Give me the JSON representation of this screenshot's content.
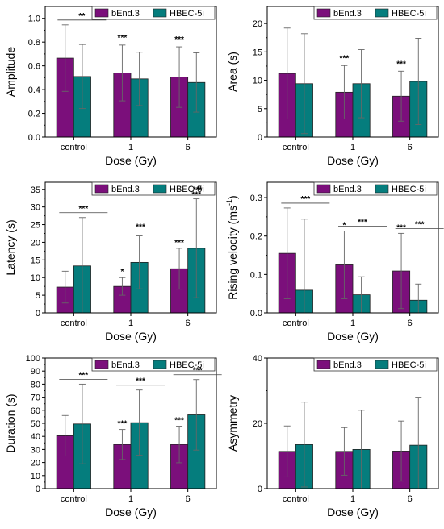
{
  "chart_data": [
    {
      "type": "bar",
      "categories": [
        "control",
        "1",
        "6"
      ],
      "xlabel": "Dose (Gy)",
      "ylabel": "Amplitude",
      "ylim": [
        0,
        1.1
      ],
      "yticks": [
        0.0,
        0.2,
        0.4,
        0.6,
        0.8,
        1.0
      ],
      "ytick_labels": [
        "0.0",
        "0.2",
        "0.4",
        "0.6",
        "0.8",
        "1.0"
      ],
      "legend_position": "top-right",
      "series": [
        {
          "name": "bEnd.3",
          "color": "#7b0f7b",
          "values": [
            0.665,
            0.54,
            0.505
          ],
          "errors": [
            0.28,
            0.235,
            0.255
          ]
        },
        {
          "name": "HBEC-5i",
          "color": "#057d7d",
          "values": [
            0.51,
            0.49,
            0.46
          ],
          "errors": [
            0.27,
            0.225,
            0.25
          ]
        }
      ],
      "annotations": [
        {
          "text": "**",
          "category": 0,
          "bracket": true
        },
        {
          "text": "***",
          "category": 1,
          "bracket": false
        },
        {
          "text": "***",
          "category": 2,
          "bracket": false
        }
      ]
    },
    {
      "type": "bar",
      "categories": [
        "control",
        "1",
        "6"
      ],
      "xlabel": "Dose (Gy)",
      "ylabel": "Area (s)",
      "ylim": [
        0,
        23
      ],
      "yticks": [
        0,
        5,
        10,
        15,
        20
      ],
      "ytick_labels": [
        "0",
        "5",
        "10",
        "15",
        "20"
      ],
      "legend_position": "top-right",
      "series": [
        {
          "name": "bEnd.3",
          "color": "#7b0f7b",
          "values": [
            11.2,
            7.9,
            7.2
          ],
          "errors": [
            8.0,
            4.7,
            4.4
          ]
        },
        {
          "name": "HBEC-5i",
          "color": "#057d7d",
          "values": [
            9.4,
            9.4,
            9.8
          ],
          "errors": [
            8.8,
            6.0,
            7.6
          ]
        }
      ],
      "annotations": [
        {
          "text": "***",
          "category": 1,
          "bracket": false
        },
        {
          "text": "***",
          "category": 2,
          "bracket": false
        }
      ]
    },
    {
      "type": "bar",
      "categories": [
        "control",
        "1",
        "6"
      ],
      "xlabel": "Dose (Gy)",
      "ylabel": "Latency (s)",
      "ylim": [
        0,
        37
      ],
      "yticks": [
        0,
        5,
        10,
        15,
        20,
        25,
        30,
        35
      ],
      "ytick_labels": [
        "0",
        "5",
        "10",
        "15",
        "20",
        "25",
        "30",
        "35"
      ],
      "legend_position": "top-right",
      "series": [
        {
          "name": "bEnd.3",
          "color": "#7b0f7b",
          "values": [
            7.3,
            7.5,
            12.5
          ],
          "errors": [
            4.5,
            2.5,
            5.8
          ]
        },
        {
          "name": "HBEC-5i",
          "color": "#057d7d",
          "values": [
            13.3,
            14.3,
            18.3
          ],
          "errors": [
            13.7,
            7.5,
            14.0
          ]
        }
      ],
      "annotations": [
        {
          "text": "***",
          "category": 0,
          "bracket": true
        },
        {
          "text": "*",
          "category": 1,
          "bracket": false
        },
        {
          "text": "***",
          "category": 1,
          "bracket": true
        },
        {
          "text": "***",
          "category": 2,
          "bracket": false
        },
        {
          "text": "***",
          "category": 2,
          "bracket": true
        },
        {
          "text": "***",
          "category": 2,
          "bracket": false
        }
      ]
    },
    {
      "type": "bar",
      "categories": [
        "control",
        "1",
        "6"
      ],
      "xlabel": "Dose (Gy)",
      "ylabel": "Rising velocity (ms",
      "ylabel_superscript": "-1",
      "ylabel_suffix": ")",
      "ylim": [
        0,
        0.34
      ],
      "yticks": [
        0.0,
        0.1,
        0.2,
        0.3
      ],
      "ytick_labels": [
        "0.0",
        "0.1",
        "0.2",
        "0.3"
      ],
      "legend_position": "top-right",
      "series": [
        {
          "name": "bEnd.3",
          "color": "#7b0f7b",
          "values": [
            0.155,
            0.125,
            0.109
          ],
          "errors": [
            0.118,
            0.088,
            0.098
          ]
        },
        {
          "name": "HBEC-5i",
          "color": "#057d7d",
          "values": [
            0.059,
            0.047,
            0.033
          ],
          "errors": [
            0.185,
            0.047,
            0.042
          ]
        }
      ],
      "annotations": [
        {
          "text": "***",
          "category": 0,
          "bracket": true
        },
        {
          "text": "*",
          "category": 1,
          "bracket": false
        },
        {
          "text": "***",
          "category": 1,
          "bracket": true
        },
        {
          "text": "***",
          "category": 2,
          "bracket": false
        },
        {
          "text": "***",
          "category": 2,
          "bracket": true
        }
      ]
    },
    {
      "type": "bar",
      "categories": [
        "control",
        "1",
        "6"
      ],
      "xlabel": "Dose (Gy)",
      "ylabel": "Duration (s)",
      "ylim": [
        0,
        100
      ],
      "yticks": [
        0,
        10,
        20,
        30,
        40,
        50,
        60,
        70,
        80,
        90,
        100
      ],
      "ytick_labels": [
        "0",
        "10",
        "20",
        "30",
        "40",
        "50",
        "60",
        "70",
        "80",
        "90",
        "100"
      ],
      "legend_position": "top-right",
      "series": [
        {
          "name": "bEnd.3",
          "color": "#7b0f7b",
          "values": [
            40.5,
            33.8,
            33.8
          ],
          "errors": [
            15.5,
            11.5,
            14.0
          ]
        },
        {
          "name": "HBEC-5i",
          "color": "#057d7d",
          "values": [
            49.5,
            50.5,
            56.5
          ],
          "errors": [
            30.5,
            25.0,
            27.0
          ]
        }
      ],
      "annotations": [
        {
          "text": "***",
          "category": 0,
          "bracket": true
        },
        {
          "text": "***",
          "category": 1,
          "bracket": false
        },
        {
          "text": "***",
          "category": 1,
          "bracket": true
        },
        {
          "text": "***",
          "category": 2,
          "bracket": false
        },
        {
          "text": "***",
          "category": 2,
          "bracket": true
        }
      ]
    },
    {
      "type": "bar",
      "categories": [
        "control",
        "1",
        "6"
      ],
      "xlabel": "Dose (Gy)",
      "ylabel": "Asymmetry",
      "ylim": [
        0,
        40
      ],
      "yticks": [
        0,
        20,
        40
      ],
      "ytick_labels": [
        "0",
        "20",
        "40"
      ],
      "legend_position": "top-right",
      "series": [
        {
          "name": "bEnd.3",
          "color": "#7b0f7b",
          "values": [
            11.4,
            11.4,
            11.5
          ],
          "errors": [
            7.8,
            7.3,
            9.2
          ]
        },
        {
          "name": "HBEC-5i",
          "color": "#057d7d",
          "values": [
            13.5,
            12.0,
            13.3
          ],
          "errors": [
            13.0,
            12.0,
            14.7
          ]
        }
      ],
      "annotations": []
    }
  ]
}
